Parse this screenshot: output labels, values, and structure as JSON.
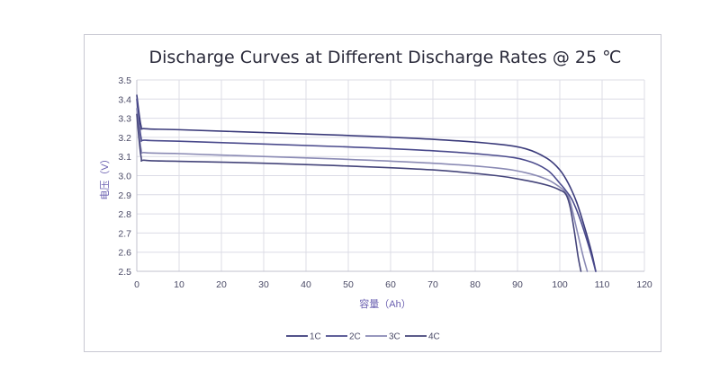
{
  "chart_data": {
    "type": "line",
    "title": "Discharge Curves at Different Discharge Rates @ 25 ℃",
    "xlabel": "容量（Ah）",
    "ylabel": "电压（V）",
    "xlim": [
      0,
      120
    ],
    "ylim": [
      2.5,
      3.5
    ],
    "xticks": [
      0,
      10,
      20,
      30,
      40,
      50,
      60,
      70,
      80,
      90,
      100,
      110,
      120
    ],
    "yticks": [
      "2.5",
      "2.6",
      "2.7",
      "2.8",
      "2.9",
      "3.0",
      "3.1",
      "3.2",
      "3.3",
      "3.4",
      "3.5"
    ],
    "grid": true,
    "legend_position": "bottom",
    "series": [
      {
        "name": "1C",
        "color": "#3a3a7a",
        "points": [
          [
            0,
            3.42
          ],
          [
            1,
            3.26
          ],
          [
            2,
            3.245
          ],
          [
            10,
            3.24
          ],
          [
            30,
            3.225
          ],
          [
            50,
            3.21
          ],
          [
            70,
            3.19
          ],
          [
            85,
            3.165
          ],
          [
            92,
            3.14
          ],
          [
            97,
            3.09
          ],
          [
            100,
            3.03
          ],
          [
            102,
            2.96
          ],
          [
            104,
            2.86
          ],
          [
            106,
            2.72
          ],
          [
            107.5,
            2.6
          ],
          [
            108.5,
            2.5
          ]
        ]
      },
      {
        "name": "2C",
        "color": "#4a4a8c",
        "points": [
          [
            0,
            3.4
          ],
          [
            1,
            3.2
          ],
          [
            2,
            3.185
          ],
          [
            10,
            3.18
          ],
          [
            30,
            3.165
          ],
          [
            50,
            3.15
          ],
          [
            70,
            3.13
          ],
          [
            85,
            3.105
          ],
          [
            92,
            3.08
          ],
          [
            97,
            3.03
          ],
          [
            100,
            2.96
          ],
          [
            101.5,
            2.92
          ],
          [
            103,
            2.87
          ],
          [
            105,
            2.76
          ],
          [
            107,
            2.62
          ],
          [
            108.5,
            2.5
          ]
        ]
      },
      {
        "name": "3C",
        "color": "#8a8ab4",
        "points": [
          [
            0,
            3.35
          ],
          [
            1,
            3.14
          ],
          [
            2,
            3.12
          ],
          [
            10,
            3.115
          ],
          [
            30,
            3.1
          ],
          [
            50,
            3.085
          ],
          [
            70,
            3.065
          ],
          [
            85,
            3.04
          ],
          [
            92,
            3.015
          ],
          [
            97,
            2.98
          ],
          [
            100,
            2.94
          ],
          [
            101.5,
            2.91
          ],
          [
            102.5,
            2.86
          ],
          [
            104,
            2.72
          ],
          [
            105.5,
            2.58
          ],
          [
            106.5,
            2.5
          ]
        ]
      },
      {
        "name": "4C",
        "color": "#44447a",
        "points": [
          [
            0,
            3.32
          ],
          [
            1,
            3.1
          ],
          [
            2,
            3.08
          ],
          [
            10,
            3.075
          ],
          [
            30,
            3.065
          ],
          [
            50,
            3.05
          ],
          [
            70,
            3.03
          ],
          [
            85,
            3.0
          ],
          [
            92,
            2.975
          ],
          [
            97,
            2.95
          ],
          [
            100,
            2.925
          ],
          [
            101.5,
            2.9
          ],
          [
            102.5,
            2.83
          ],
          [
            103.5,
            2.7
          ],
          [
            104.3,
            2.58
          ],
          [
            105,
            2.5
          ]
        ]
      }
    ]
  }
}
